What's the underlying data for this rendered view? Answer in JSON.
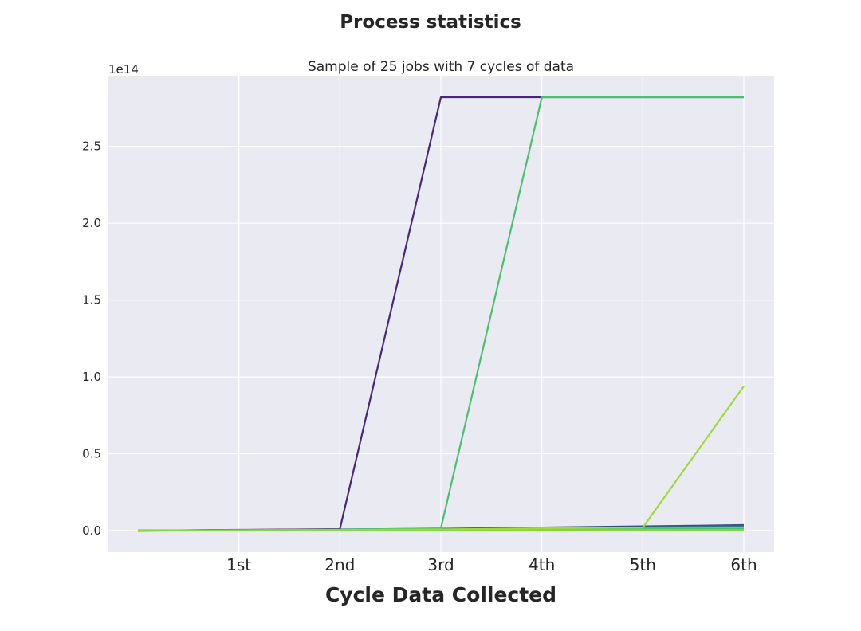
{
  "chart_data": {
    "type": "line",
    "title": "Process statistics",
    "subtitle": "Sample of 25 jobs with 7 cycles of data",
    "xlabel": "Cycle Data Collected",
    "ylabel": "",
    "y_offset_label": "1e14",
    "x": [
      0,
      1,
      2,
      3,
      4,
      5,
      6
    ],
    "x_tick_values": [
      1,
      2,
      3,
      4,
      5,
      6
    ],
    "x_tick_labels": [
      "1st",
      "2nd",
      "3rd",
      "4th",
      "5th",
      "6th"
    ],
    "xlim": [
      -0.3,
      6.3
    ],
    "y_tick_values": [
      0,
      0.5,
      1.0,
      1.5,
      2.0,
      2.5
    ],
    "y_tick_labels": [
      "0.0",
      "0.5",
      "1.0",
      "1.5",
      "2.0",
      "2.5"
    ],
    "ylim": [
      -0.14,
      2.96
    ],
    "y_unit_multiplier": "1e14",
    "grid": true,
    "background": "#eaeaf2",
    "series": [
      {
        "color": "#3e4a89",
        "values": [
          0.0,
          0.005,
          0.008,
          0.012,
          0.02,
          0.028,
          0.036
        ]
      },
      {
        "color": "#31688e",
        "values": [
          0.0,
          0.004,
          0.006,
          0.01,
          0.016,
          0.022,
          0.03
        ]
      },
      {
        "color": "#26828e",
        "values": [
          0.0,
          0.003,
          0.005,
          0.008,
          0.012,
          0.018,
          0.024
        ]
      },
      {
        "color": "#35b779",
        "values": [
          0.0,
          0.003,
          0.004,
          0.007,
          0.01,
          0.015,
          0.02
        ]
      },
      {
        "color": "#6ece58",
        "values": [
          0.0,
          0.002,
          0.004,
          0.006,
          0.008,
          0.012,
          0.016
        ]
      },
      {
        "color": "#44bf70",
        "values": [
          0.0,
          0.001,
          0.002,
          0.003,
          0.005,
          0.008,
          0.01
        ]
      },
      {
        "color": "#7ad151",
        "values": [
          0.0,
          0.001,
          0.001,
          0.002,
          0.003,
          0.004,
          0.005
        ]
      },
      {
        "color": "#482878",
        "values": [
          0.0,
          0.004,
          0.01,
          2.82,
          2.82,
          2.82,
          2.82
        ]
      },
      {
        "color": "#4ac16d",
        "values": [
          0.0,
          0.003,
          0.006,
          0.015,
          2.82,
          2.82,
          2.82
        ]
      },
      {
        "color": "#9fda3a",
        "values": [
          0.0,
          0.002,
          0.004,
          0.008,
          0.015,
          0.02,
          0.94
        ]
      },
      {
        "color": "#8bd646",
        "values": [
          0.0,
          0.0,
          0.0,
          0.0,
          0.0,
          0.0,
          0.0
        ]
      }
    ]
  }
}
